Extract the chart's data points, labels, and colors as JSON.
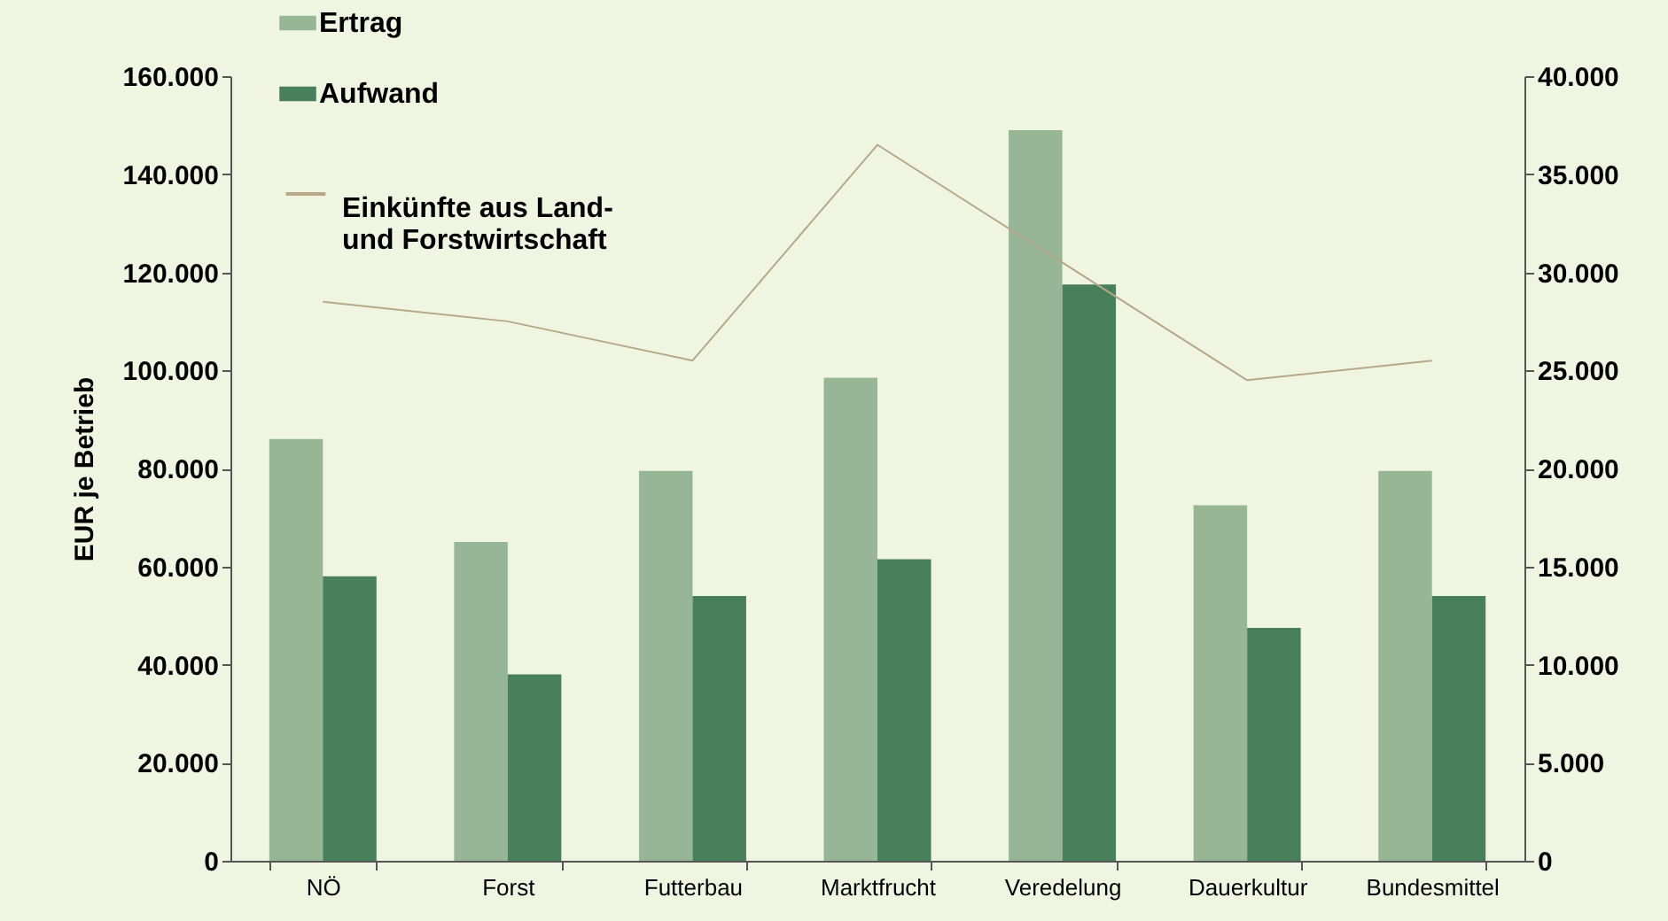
{
  "chart_data": {
    "type": "bar",
    "ylabel": "EUR je Betrieb",
    "categories": [
      "NÖ",
      "Forst",
      "Futterbau",
      "Marktfrucht",
      "Veredelung",
      "Dauerkultur",
      "Bundesmittel"
    ],
    "series": [
      {
        "name": "Ertrag",
        "color": "#97b695",
        "values": [
          86000,
          65000,
          79500,
          98500,
          149000,
          72500,
          79500
        ]
      },
      {
        "name": "Aufwand",
        "color": "#47805a",
        "values": [
          58000,
          38000,
          54000,
          61500,
          117500,
          47500,
          54000
        ]
      },
      {
        "name": "Einkünfte aus Land- und Forstwirtschaft",
        "type": "line",
        "axis": "y2",
        "color": "#b8a888",
        "values": [
          28500,
          27500,
          25500,
          36500,
          30500,
          24500,
          25500
        ]
      }
    ],
    "ylim": [
      0,
      160000
    ],
    "yticks": [
      {
        "value": 0,
        "label": "0"
      },
      {
        "value": 20000,
        "label": "20.000"
      },
      {
        "value": 40000,
        "label": "40.000"
      },
      {
        "value": 60000,
        "label": "60.000"
      },
      {
        "value": 80000,
        "label": "80.000"
      },
      {
        "value": 100000,
        "label": "100.000"
      },
      {
        "value": 120000,
        "label": "120.000"
      },
      {
        "value": 140000,
        "label": "140.000"
      },
      {
        "value": 160000,
        "label": "160.000"
      }
    ],
    "y2lim": [
      0,
      40000
    ],
    "y2ticks": [
      {
        "value": 0,
        "label": "0"
      },
      {
        "value": 5000,
        "label": "5.000"
      },
      {
        "value": 10000,
        "label": "10.000"
      },
      {
        "value": 15000,
        "label": "15.000"
      },
      {
        "value": 20000,
        "label": "20.000"
      },
      {
        "value": 25000,
        "label": "25.000"
      },
      {
        "value": 30000,
        "label": "30.000"
      },
      {
        "value": 35000,
        "label": "35.000"
      },
      {
        "value": 40000,
        "label": "40.000"
      }
    ],
    "grid": false,
    "legend": "top left"
  }
}
